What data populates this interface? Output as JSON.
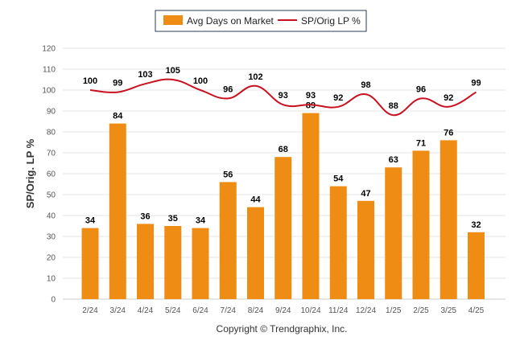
{
  "colors": {
    "bar": "#ef8c14",
    "line": "#c8101e",
    "grid": "#e6e6e6",
    "legend_border": "#2b3a55"
  },
  "legend": {
    "bar_label": "Avg Days on Market",
    "line_label": "SP/Orig LP %"
  },
  "copyright": "Copyright © Trendgraphix, Inc.",
  "chart_data": {
    "type": "bar",
    "categories": [
      "2/24",
      "3/24",
      "4/24",
      "5/24",
      "6/24",
      "7/24",
      "8/24",
      "9/24",
      "10/24",
      "11/24",
      "12/24",
      "1/25",
      "2/25",
      "3/25",
      "4/25"
    ],
    "series": [
      {
        "name": "Avg Days on Market",
        "type": "bar",
        "values": [
          34,
          84,
          36,
          35,
          34,
          56,
          44,
          68,
          89,
          54,
          47,
          63,
          71,
          76,
          32
        ]
      },
      {
        "name": "SP/Orig LP %",
        "type": "line",
        "values": [
          100,
          99,
          103,
          105,
          100,
          96,
          102,
          93,
          93,
          92,
          98,
          88,
          96,
          92,
          99
        ]
      }
    ],
    "ylabel": "SP/Orig. LP %",
    "xlabel": "",
    "ylim": [
      0,
      120
    ],
    "yticks": [
      0,
      10,
      20,
      30,
      40,
      50,
      60,
      70,
      80,
      90,
      100,
      110,
      120
    ],
    "grid": true,
    "legend_position": "top-center"
  }
}
